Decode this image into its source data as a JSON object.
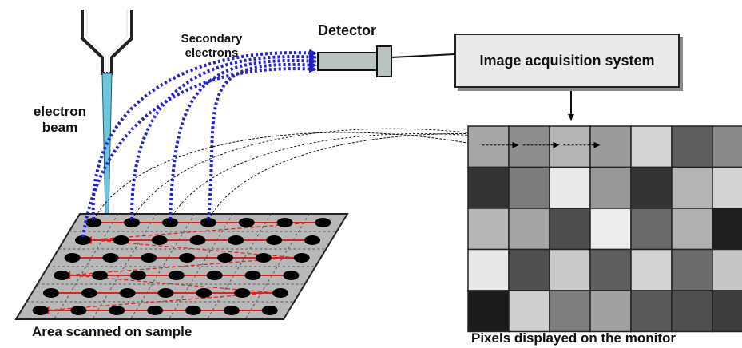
{
  "labels": {
    "electron_beam": [
      "electron",
      "beam"
    ],
    "secondary_electrons": [
      "Secondary",
      "electrons"
    ],
    "detector": "Detector",
    "image_acquisition": "Image acquisition system",
    "area_scanned": "Area scanned on sample",
    "pixels_displayed": "Pixels displayed on the monitor"
  },
  "colors": {
    "secondary_electron_paths": "#2323c8",
    "scan_path": "#e02020",
    "beam": "#6fc3dc",
    "detector": "#b9c4c0",
    "sample_plate": "#b8b8b8",
    "dot": "#000000"
  },
  "pixel_grid": {
    "rows": 5,
    "cols": 7,
    "gray_levels": [
      [
        "#a6a6a6",
        "#8e8e8e",
        "#b5b5b5",
        "#9b9b9b",
        "#d4d4d4",
        "#5e5e5e",
        "#8a8a8a"
      ],
      [
        "#343434",
        "#7c7c7c",
        "#e9e9e9",
        "#989898",
        "#343434",
        "#b4b4b4",
        "#d2d2d2"
      ],
      [
        "#b6b6b6",
        "#a4a4a4",
        "#4d4d4d",
        "#ececec",
        "#6a6a6a",
        "#b0b0b0",
        "#1e1e1e"
      ],
      [
        "#e8e8e8",
        "#505050",
        "#c9c9c9",
        "#5f5f5f",
        "#d3d3d3",
        "#6c6c6c",
        "#c6c6c6"
      ],
      [
        "#1b1b1b",
        "#cfcfcf",
        "#7e7e7e",
        "#a0a0a0",
        "#595959",
        "#4f4f4f",
        "#3d3d3d"
      ]
    ]
  },
  "sample_grid": {
    "rows": 6,
    "cols": 7
  }
}
